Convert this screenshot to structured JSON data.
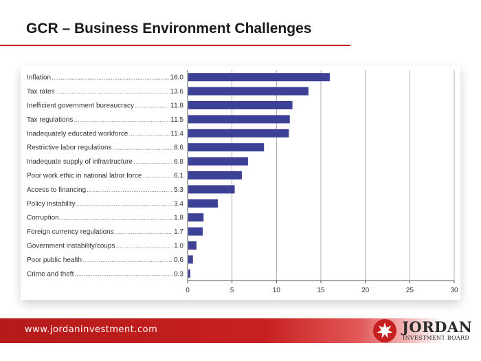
{
  "slide": {
    "title": "GCR – Business Environment Challenges"
  },
  "footer": {
    "url": "www.jordaninvestment.com",
    "logo_name": "JORDAN",
    "logo_subtitle": "INVESTMENT BOARD"
  },
  "colors": {
    "bar": "#3d4196",
    "accent": "#c41e1e"
  },
  "chart_data": {
    "type": "bar",
    "orientation": "horizontal",
    "categories": [
      "Inflation",
      "Tax rates",
      "Inefficient government bureaucracy",
      "Tax regulations",
      "Inadequately educated workforce",
      "Restrictive labor regulations",
      "Inadequate supply of infrastructure",
      "Poor work ethic in national labor force",
      "Access to financing",
      "Policy instability",
      "Corruption",
      "Foreign currency regulations",
      "Government instability/coups",
      "Poor public health",
      "Crime and theft"
    ],
    "values": [
      16.0,
      13.6,
      11.8,
      11.5,
      11.4,
      8.6,
      6.8,
      6.1,
      5.3,
      3.4,
      1.8,
      1.7,
      1.0,
      0.6,
      0.3
    ],
    "value_labels": [
      "16.0",
      "13.6",
      "11.8",
      "11.5",
      "11.4",
      "8.6",
      "6.8",
      "6.1",
      "5.3",
      "3.4",
      "1.8",
      "1.7",
      "1.0",
      "0.6",
      "0.3"
    ],
    "xlim": [
      0,
      30
    ],
    "xticks": [
      0,
      5,
      10,
      15,
      20,
      25,
      30
    ],
    "grid": true
  }
}
